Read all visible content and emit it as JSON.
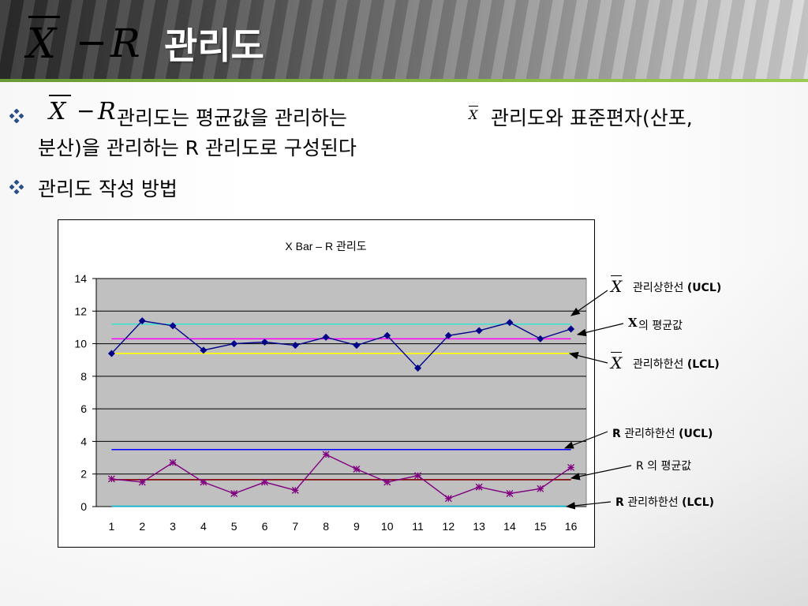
{
  "title": {
    "symbol_x": "X",
    "symbol_minus": "−",
    "symbol_r": "R",
    "text": "관리도"
  },
  "bullets": [
    {
      "icon": "diamond-bullet-icon",
      "prefix_x": "X",
      "prefix_minus": "−",
      "prefix_r": "R",
      "line1_a": "관리도는 평균값을 관리하는",
      "line1_xbar": "X",
      "line1_b": "관리도와 표준편자(산포,",
      "line2": "분산)을 관리하는  R 관리도로 구성된다"
    },
    {
      "icon": "diamond-bullet-icon",
      "text": "관리도 작성 방법"
    }
  ],
  "chart_data": {
    "type": "line",
    "title": "X Bar – R 관리도",
    "categories": [
      "1",
      "2",
      "3",
      "4",
      "5",
      "6",
      "7",
      "8",
      "9",
      "10",
      "11",
      "12",
      "13",
      "14",
      "15",
      "16"
    ],
    "y_ticks": [
      "0",
      "2",
      "4",
      "6",
      "8",
      "10",
      "12",
      "14"
    ],
    "ylim": [
      0,
      14
    ],
    "grid": true,
    "plot_bg": "#c0c0c0",
    "series": [
      {
        "marker": "diamond",
        "color": "#00008b",
        "values": [
          9.4,
          11.4,
          11.1,
          9.6,
          10.0,
          10.1,
          9.9,
          10.4,
          9.9,
          10.5,
          8.5,
          10.5,
          10.8,
          11.3,
          10.3,
          10.9
        ]
      },
      {
        "marker": "star",
        "color": "#800080",
        "values": [
          1.7,
          1.5,
          2.7,
          1.5,
          0.8,
          1.5,
          1.0,
          3.2,
          2.3,
          1.5,
          1.9,
          0.5,
          1.2,
          0.8,
          1.1,
          2.4
        ]
      }
    ],
    "reference_lines": [
      {
        "value": 11.2,
        "color": "#40e0d0"
      },
      {
        "value": 10.3,
        "color": "#ff00ff"
      },
      {
        "value": 9.4,
        "color": "#ffff00"
      },
      {
        "value": 3.5,
        "color": "#0000ff"
      },
      {
        "value": 1.65,
        "color": "#800000"
      },
      {
        "value": 0.02,
        "color": "#00bcd4"
      }
    ]
  },
  "callouts": [
    {
      "symbol": "X",
      "text": "관리상한선 ",
      "bold": "(UCL)"
    },
    {
      "symbol": "X",
      "text": " 의 평균값",
      "bold": ""
    },
    {
      "symbol": "X",
      "text": "관리하한선 ",
      "bold": "(LCL)"
    },
    {
      "symbol": "R",
      "text": "  관리하한선 ",
      "bold": "(UCL)"
    },
    {
      "symbol": "R",
      "text": " 의 평균값",
      "bold": ""
    },
    {
      "symbol": "R",
      "text": "  관리하한선 ",
      "bold": "(LCL)"
    }
  ]
}
